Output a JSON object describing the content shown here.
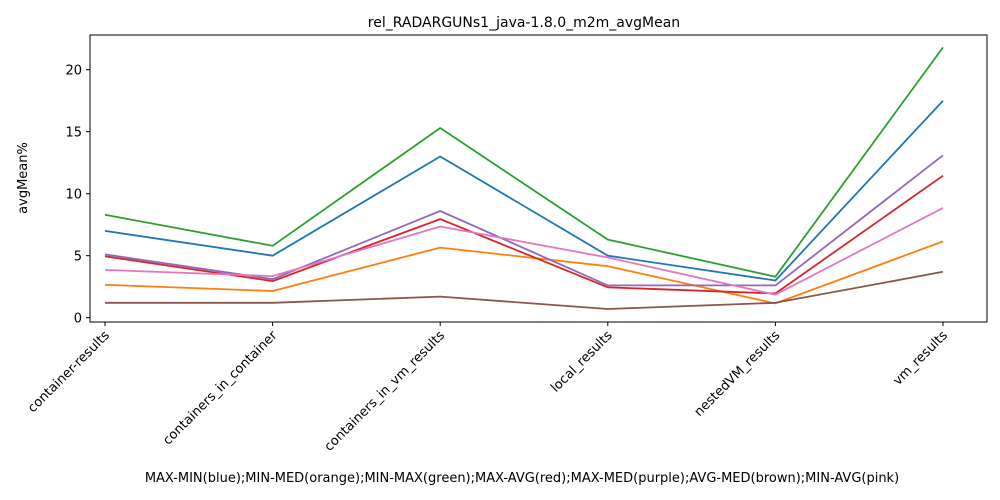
{
  "chart_data": {
    "type": "line",
    "title": "rel_RADARGUNs1_java-1.8.0_m2m_avgMean",
    "xlabel": "MAX-MIN(blue);MIN-MED(orange);MIN-MAX(green);MAX-AVG(red);MAX-MED(purple);AVG-MED(brown);MIN-AVG(pink)",
    "ylabel": "avgMean%",
    "categories": [
      "container-results",
      "containers_in_container",
      "containers_in_vm_results",
      "local_results",
      "nestedVM_results",
      "vm_results"
    ],
    "ylim": [
      -0.35,
      22.8
    ],
    "yticks": [
      0,
      5,
      10,
      15,
      20
    ],
    "grid": false,
    "series": [
      {
        "color": "#1f77b4",
        "values": [
          7.0,
          5.0,
          13.0,
          5.0,
          3.0,
          17.5
        ]
      },
      {
        "color": "#ff7f0e",
        "values": [
          2.65,
          2.15,
          5.65,
          4.15,
          1.15,
          6.15
        ]
      },
      {
        "color": "#2ca02c",
        "values": [
          8.3,
          5.8,
          15.3,
          6.3,
          3.3,
          21.8
        ]
      },
      {
        "color": "#d62728",
        "values": [
          4.95,
          2.95,
          7.95,
          2.45,
          1.95,
          11.45
        ]
      },
      {
        "color": "#9467bd",
        "values": [
          5.1,
          3.1,
          8.6,
          2.6,
          2.6,
          13.1
        ]
      },
      {
        "color": "#8c564b",
        "values": [
          1.2,
          1.2,
          1.7,
          0.7,
          1.2,
          3.7
        ]
      },
      {
        "color": "#e377c2",
        "values": [
          3.85,
          3.35,
          7.35,
          4.85,
          1.85,
          8.85
        ]
      }
    ]
  }
}
